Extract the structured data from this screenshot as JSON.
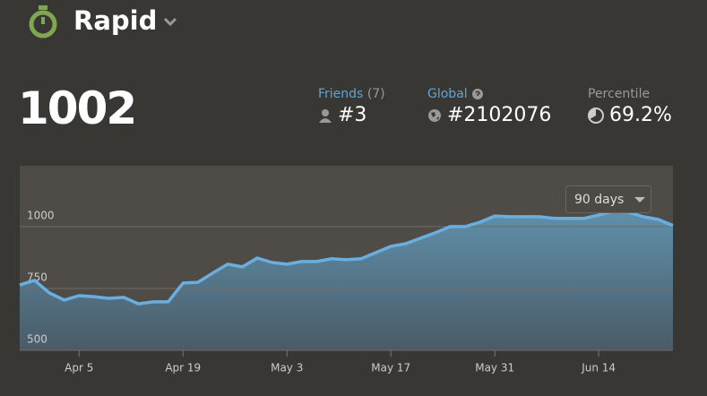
{
  "header": {
    "title": "Rapid"
  },
  "rating": 1002,
  "stats": {
    "friends": {
      "label": "Friends",
      "count": "(7)",
      "value": "#3"
    },
    "global": {
      "label": "Global",
      "value": "#2102076"
    },
    "percentile": {
      "label": "Percentile",
      "value": "69.2%"
    }
  },
  "range_selector": "90 days",
  "chart_data": {
    "type": "area",
    "color": "#6aaee0",
    "x": [
      "Mar 28",
      "Mar 30",
      "Apr 1",
      "Apr 3",
      "Apr 5",
      "Apr 7",
      "Apr 9",
      "Apr 11",
      "Apr 13",
      "Apr 15",
      "Apr 17",
      "Apr 19",
      "Apr 21",
      "Apr 23",
      "Apr 25",
      "Apr 27",
      "Apr 29",
      "May 1",
      "May 3",
      "May 5",
      "May 7",
      "May 9",
      "May 11",
      "May 13",
      "May 15",
      "May 17",
      "May 19",
      "May 21",
      "May 23",
      "May 25",
      "May 27",
      "May 29",
      "May 31",
      "Jun 2",
      "Jun 4",
      "Jun 6",
      "Jun 8",
      "Jun 10",
      "Jun 12",
      "Jun 14",
      "Jun 16",
      "Jun 18",
      "Jun 20",
      "Jun 22",
      "Jun 24"
    ],
    "values": [
      764,
      783,
      732,
      703,
      721,
      717,
      710,
      714,
      688,
      696,
      696,
      772,
      775,
      812,
      848,
      837,
      873,
      855,
      848,
      859,
      859,
      870,
      866,
      870,
      895,
      920,
      931,
      953,
      975,
      1000,
      1000,
      1018,
      1043,
      1040,
      1040,
      1040,
      1033,
      1033,
      1033,
      1047,
      1062,
      1058,
      1040,
      1029,
      1004
    ],
    "ylim": [
      500,
      1246
    ],
    "yticks": [
      500,
      750,
      1000
    ],
    "xticks": [
      "Apr 5",
      "Apr 19",
      "May 3",
      "May 17",
      "May 31",
      "Jun 14"
    ],
    "grid": true
  }
}
